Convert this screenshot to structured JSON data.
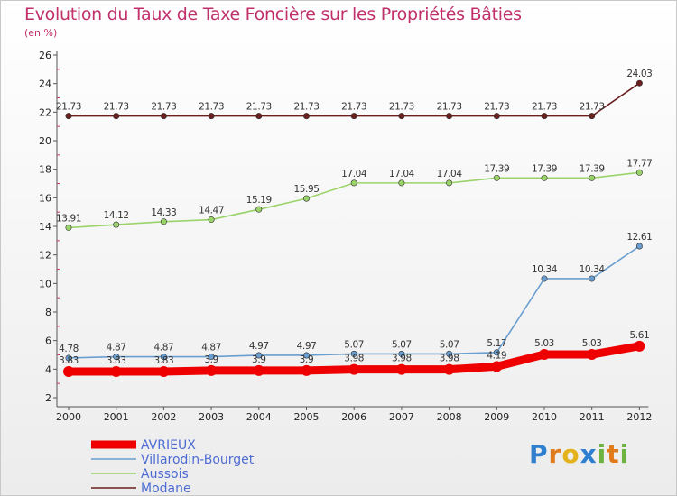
{
  "header": {
    "title": "Evolution du Taux de Taxe Foncière sur les Propriétés Bâties",
    "unit": "(en %)"
  },
  "logo": {
    "text": "Proxiti",
    "letters": [
      "P",
      "r",
      "o",
      "x",
      "i",
      "t",
      "i"
    ],
    "letter_colors": [
      "#2e7fd0",
      "#e07a1a",
      "#e3b21b",
      "#2e7fd0",
      "#6cb43f",
      "#e07a1a",
      "#6cb43f"
    ]
  },
  "chart_data": {
    "type": "line",
    "title": "Evolution du Taux de Taxe Foncière sur les Propriétés Bâties",
    "ylabel": "(en %)",
    "xlabel": "",
    "ylim": [
      2,
      26
    ],
    "yticks": [
      2,
      4,
      6,
      8,
      10,
      12,
      14,
      16,
      18,
      20,
      22,
      24,
      26
    ],
    "categories": [
      "2000",
      "2001",
      "2002",
      "2003",
      "2004",
      "2005",
      "2006",
      "2007",
      "2008",
      "2009",
      "2010",
      "2011",
      "2012"
    ],
    "series": [
      {
        "name": "Modane",
        "color": "#6b1f1f",
        "values": [
          21.73,
          21.73,
          21.73,
          21.73,
          21.73,
          21.73,
          21.73,
          21.73,
          21.73,
          21.73,
          21.73,
          21.73,
          24.03
        ],
        "labels": [
          "21.73",
          "21.73",
          "21.73",
          "21.73",
          "21.73",
          "21.73",
          "21.73",
          "21.73",
          "21.73",
          "21.73",
          "21.73",
          "21.73",
          "24.03"
        ]
      },
      {
        "name": "Aussois",
        "color": "#9bd36b",
        "values": [
          13.91,
          14.12,
          14.33,
          14.47,
          15.19,
          15.95,
          17.04,
          17.04,
          17.04,
          17.39,
          17.39,
          17.39,
          17.77
        ],
        "labels": [
          "13.91",
          "14.12",
          "14.33",
          "14.47",
          "15.19",
          "15.95",
          "17.04",
          "17.04",
          "17.04",
          "17.39",
          "17.39",
          "17.39",
          "17.77"
        ]
      },
      {
        "name": "Villarodin-Bourget",
        "color": "#6a9ed0",
        "values": [
          4.78,
          4.87,
          4.87,
          4.87,
          4.97,
          4.97,
          5.07,
          5.07,
          5.07,
          5.17,
          10.34,
          10.34,
          12.61
        ],
        "labels": [
          "4.78",
          "4.87",
          "4.87",
          "4.87",
          "4.97",
          "4.97",
          "5.07",
          "5.07",
          "5.07",
          "5.17",
          "10.34",
          "10.34",
          "12.61"
        ]
      },
      {
        "name": "AVRIEUX",
        "color": "#ee0000",
        "values": [
          3.83,
          3.83,
          3.83,
          3.9,
          3.9,
          3.9,
          3.98,
          3.98,
          3.98,
          4.19,
          5.03,
          5.03,
          5.61
        ],
        "labels": [
          "3.83",
          "3.83",
          "3.83",
          "3.9",
          "3.9",
          "3.9",
          "3.98",
          "3.98",
          "3.98",
          "4.19",
          "5.03",
          "5.03",
          "5.61"
        ]
      }
    ],
    "legend": [
      "AVRIEUX",
      "Villarodin-Bourget",
      "Aussois",
      "Modane"
    ],
    "legend_position": "bottom-left",
    "grid": false
  }
}
